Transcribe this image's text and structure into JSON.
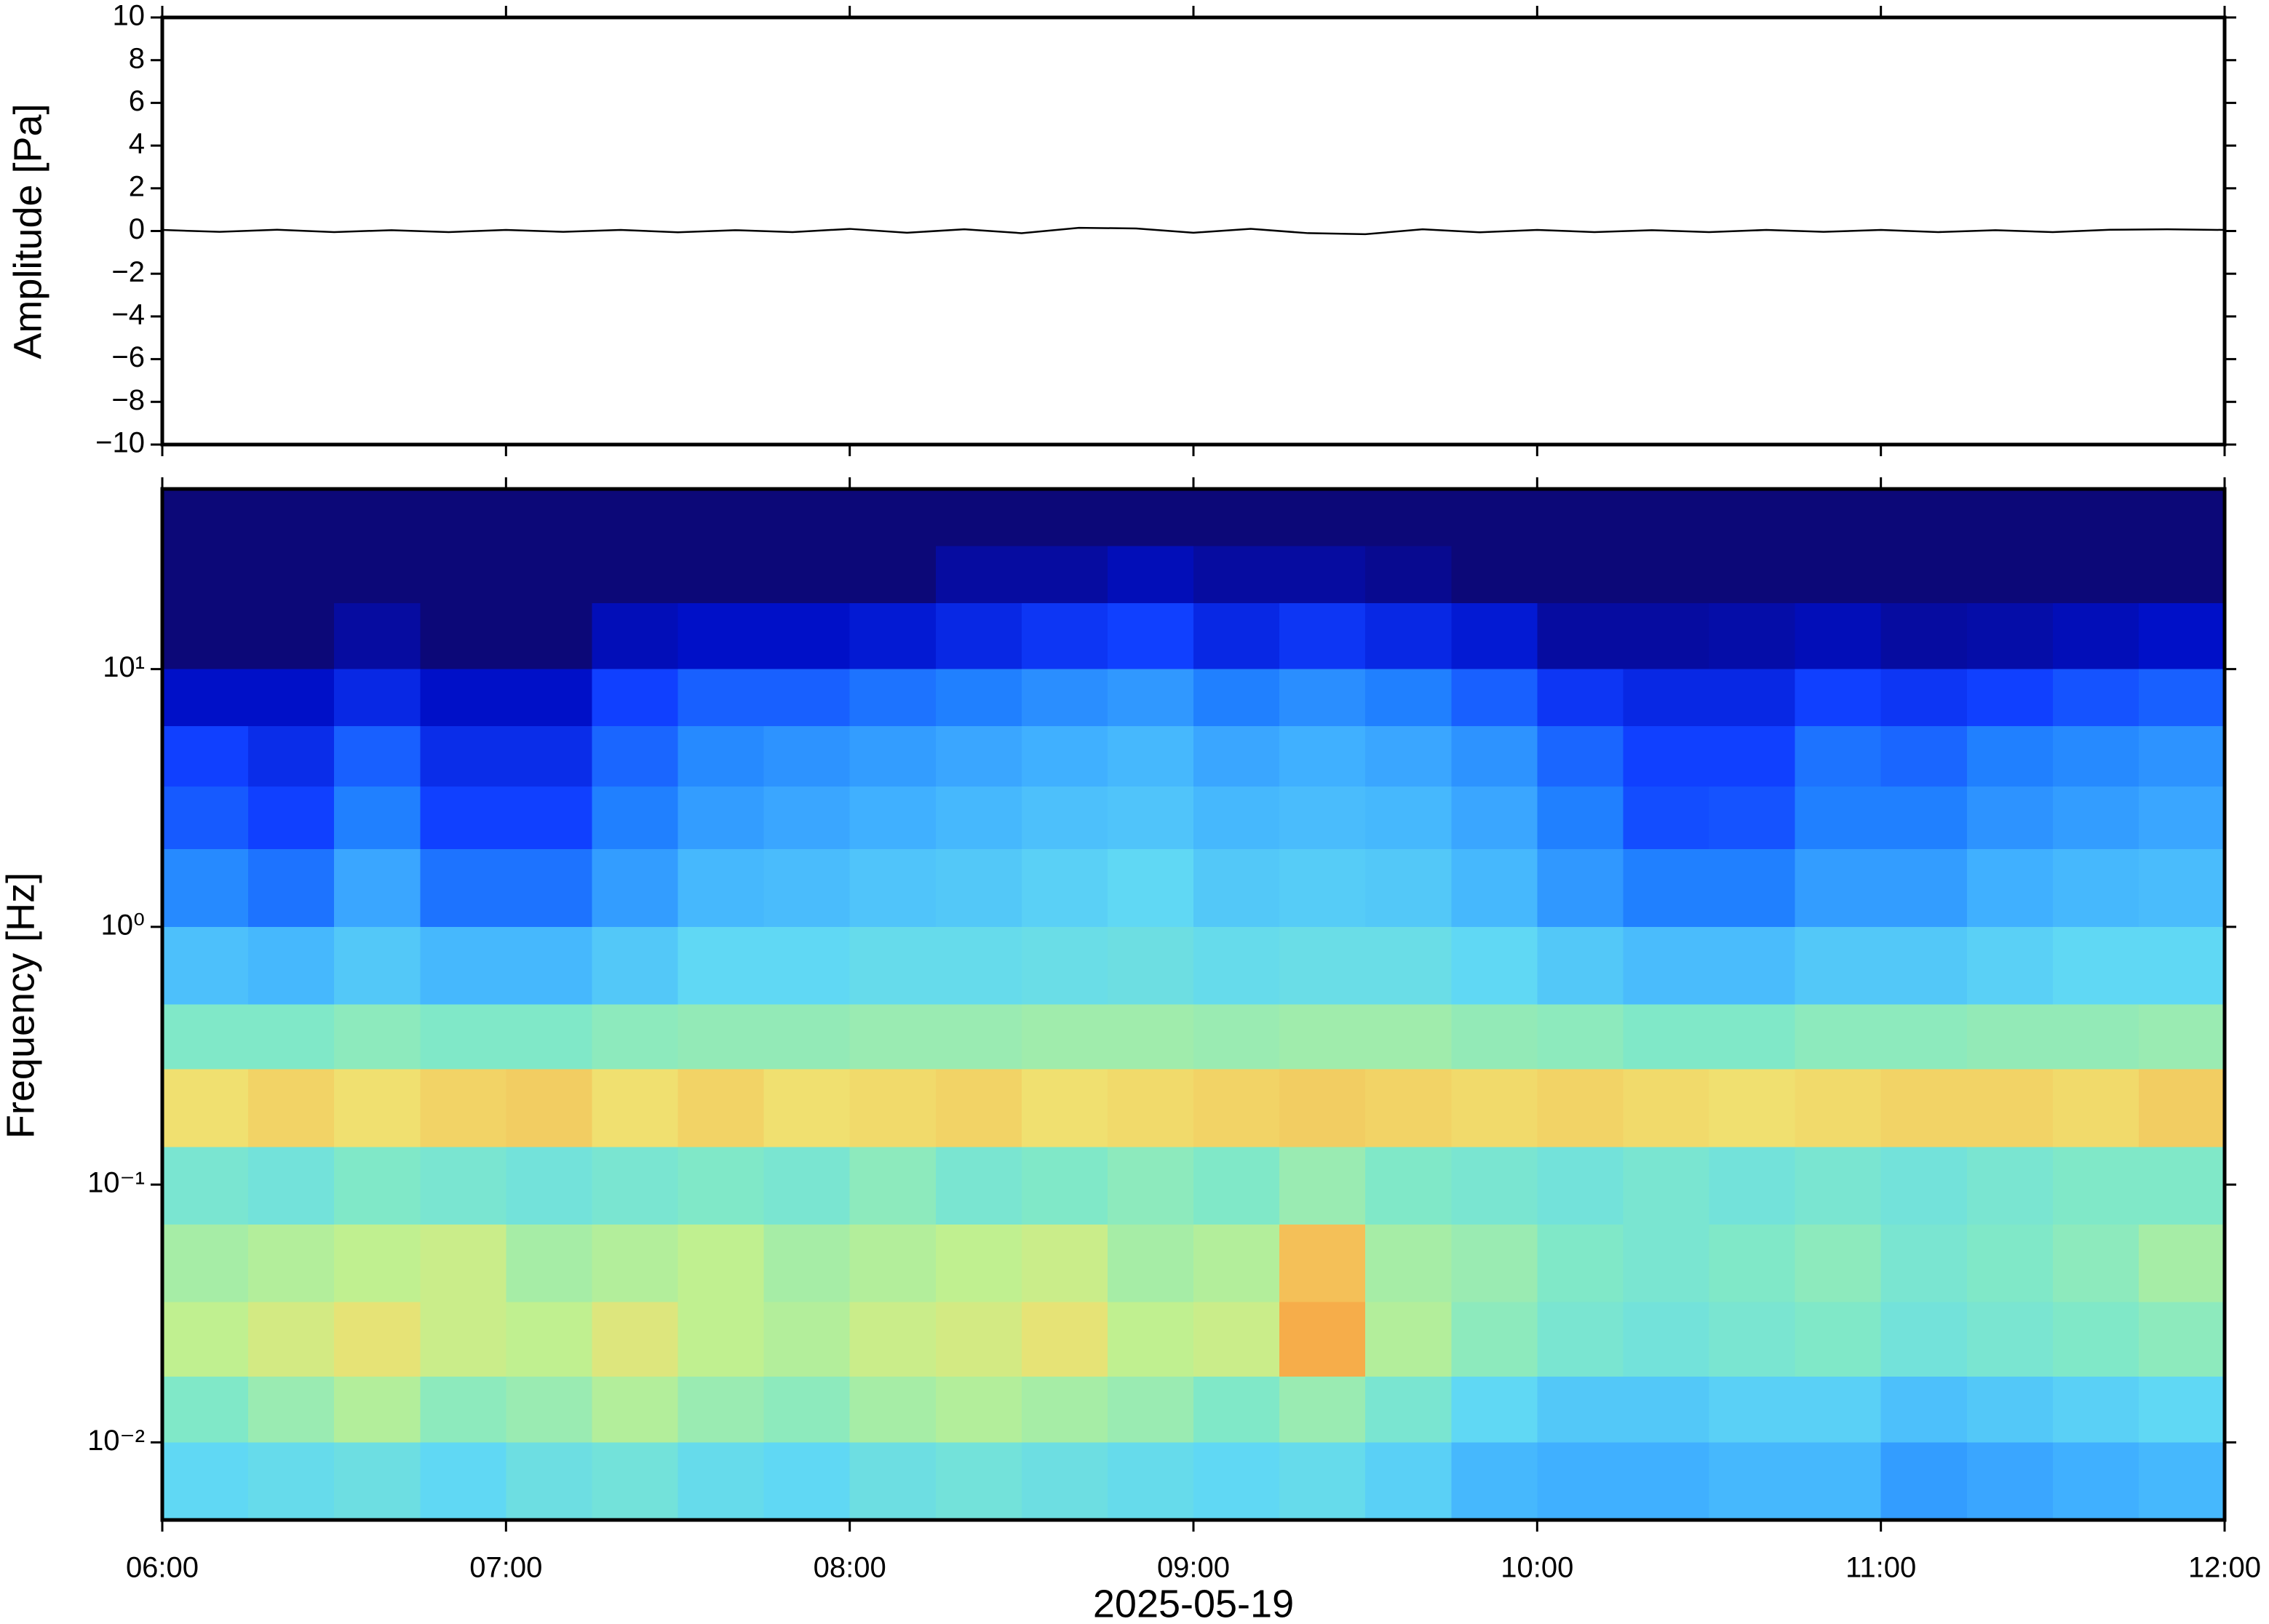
{
  "chart_data": [
    {
      "type": "line",
      "ylabel": "Amplitude [Pa]",
      "color": "#000000",
      "x": [
        "06:00",
        "06:10",
        "06:20",
        "06:30",
        "06:40",
        "06:50",
        "07:00",
        "07:10",
        "07:20",
        "07:30",
        "07:40",
        "07:50",
        "08:00",
        "08:10",
        "08:20",
        "08:30",
        "08:40",
        "08:50",
        "09:00",
        "09:10",
        "09:20",
        "09:30",
        "09:40",
        "09:50",
        "10:00",
        "10:10",
        "10:20",
        "10:30",
        "10:40",
        "10:50",
        "11:00",
        "11:10",
        "11:20",
        "11:30",
        "11:40",
        "11:50",
        "12:00"
      ],
      "values": [
        0.05,
        -0.04,
        0.06,
        -0.05,
        0.04,
        -0.05,
        0.05,
        -0.04,
        0.05,
        -0.06,
        0.04,
        -0.05,
        0.1,
        -0.08,
        0.08,
        -0.1,
        0.15,
        0.12,
        -0.08,
        0.1,
        -0.1,
        -0.15,
        0.08,
        -0.06,
        0.05,
        -0.05,
        0.04,
        -0.05,
        0.05,
        -0.04,
        0.05,
        -0.05,
        0.04,
        -0.05,
        0.06,
        0.08,
        0.05
      ],
      "ylim": [
        -10,
        10
      ],
      "yticks": [
        {
          "value": -10,
          "label": "−10"
        },
        {
          "value": -8,
          "label": "−8"
        },
        {
          "value": -6,
          "label": "−6"
        },
        {
          "value": -4,
          "label": "−4"
        },
        {
          "value": -2,
          "label": "−2"
        },
        0,
        2,
        4,
        6,
        8,
        10
      ]
    },
    {
      "type": "spectrogram",
      "ylabel": "Frequency [Hz]",
      "xlabel": "2025-05-19",
      "log_y": true,
      "colormap": [
        "#0c0878",
        "#0010c8",
        "#1040ff",
        "#2080ff",
        "#40b0ff",
        "#60d8f4",
        "#80e8c8",
        "#c0f090",
        "#f0e070",
        "#f8a040",
        "#e04020"
      ],
      "zlim": [
        0,
        10
      ],
      "xlim": [
        "06:00",
        "12:00"
      ],
      "xticks": [
        "06:00",
        "07:00",
        "08:00",
        "09:00",
        "10:00",
        "11:00",
        "12:00"
      ],
      "ylim": [
        0.005,
        50
      ],
      "yticks": [
        {
          "value": 0.01,
          "label": "10⁻²"
        },
        {
          "value": 0.1,
          "label": "10⁻¹"
        },
        {
          "value": 1,
          "label": "10⁰"
        },
        {
          "value": 10,
          "label": "10¹"
        }
      ],
      "x_edges": [
        "06:00",
        "06:15",
        "06:30",
        "06:45",
        "07:00",
        "07:15",
        "07:30",
        "07:45",
        "08:00",
        "08:15",
        "08:30",
        "08:45",
        "09:00",
        "09:15",
        "09:30",
        "09:45",
        "10:00",
        "10:15",
        "10:30",
        "10:45",
        "11:00",
        "11:15",
        "11:30",
        "11:45",
        "12:00"
      ],
      "y_edges": [
        50,
        30,
        18,
        10,
        6,
        3.5,
        2,
        1,
        0.5,
        0.28,
        0.14,
        0.07,
        0.035,
        0.018,
        0.01,
        0.005
      ],
      "values": [
        [
          0,
          0,
          0,
          0,
          0,
          0,
          0,
          0,
          0,
          0,
          0,
          0,
          0,
          0,
          0,
          0,
          0,
          0,
          0,
          0,
          0,
          0,
          0,
          0
        ],
        [
          0,
          0,
          0,
          0,
          0,
          0,
          0,
          0,
          0,
          0.5,
          0.5,
          0.8,
          0.5,
          0.5,
          0.3,
          0,
          0,
          0,
          0,
          0,
          0,
          0,
          0,
          0
        ],
        [
          0,
          0,
          0.5,
          0,
          0,
          0.8,
          1,
          1,
          1.2,
          1.5,
          1.8,
          2,
          1.5,
          1.8,
          1.5,
          1.2,
          0.5,
          0.5,
          0.6,
          0.8,
          0.5,
          0.6,
          0.8,
          1
        ],
        [
          1,
          1,
          1.5,
          1,
          1,
          2,
          2.5,
          2.5,
          2.8,
          3,
          3.3,
          3.5,
          3,
          3.3,
          3,
          2.5,
          1.8,
          1.5,
          1.5,
          2,
          1.8,
          2,
          2.3,
          2.5
        ],
        [
          2,
          1.6,
          2.5,
          1.6,
          1.6,
          2.6,
          3.2,
          3.4,
          3.6,
          3.8,
          4,
          4.2,
          3.8,
          4,
          3.8,
          3.4,
          2.6,
          2,
          2,
          2.8,
          2.6,
          3,
          3.2,
          3.4
        ],
        [
          2.4,
          2,
          3,
          2,
          2,
          3,
          3.6,
          3.8,
          4,
          4.2,
          4.4,
          4.5,
          4.2,
          4.3,
          4.2,
          3.8,
          3,
          2.2,
          2.3,
          3,
          3,
          3.4,
          3.6,
          3.8
        ],
        [
          3.2,
          2.8,
          3.8,
          2.8,
          2.8,
          3.6,
          4.2,
          4.3,
          4.5,
          4.6,
          4.8,
          5,
          4.6,
          4.7,
          4.6,
          4.2,
          3.5,
          3,
          3,
          3.6,
          3.6,
          4,
          4.2,
          4.3
        ],
        [
          4.4,
          4.2,
          4.6,
          4.2,
          4.2,
          4.6,
          5,
          5,
          5.2,
          5.2,
          5.3,
          5.4,
          5.2,
          5.3,
          5.3,
          5,
          4.6,
          4.3,
          4.3,
          4.6,
          4.6,
          4.8,
          5,
          5
        ],
        [
          6,
          6,
          6.2,
          6,
          6,
          6.2,
          6.3,
          6.3,
          6.4,
          6.4,
          6.5,
          6.5,
          6.4,
          6.5,
          6.5,
          6.3,
          6.2,
          6,
          6,
          6.2,
          6.2,
          6.3,
          6.3,
          6.4
        ],
        [
          8,
          8.2,
          8,
          8.2,
          8.3,
          8,
          8.2,
          8,
          8.1,
          8.2,
          8,
          8.1,
          8.2,
          8.3,
          8.2,
          8.1,
          8.2,
          8.1,
          8,
          8.1,
          8.2,
          8.2,
          8.1,
          8.3
        ],
        [
          5.8,
          5.6,
          6,
          5.8,
          5.6,
          5.8,
          6,
          5.8,
          6.2,
          5.8,
          6,
          6.2,
          6,
          6.4,
          6,
          5.8,
          5.6,
          5.8,
          5.6,
          5.8,
          5.6,
          5.8,
          6,
          6
        ],
        [
          6.6,
          6.8,
          7,
          7.2,
          6.6,
          6.8,
          7,
          6.6,
          6.8,
          7,
          7.2,
          6.6,
          6.8,
          8.5,
          6.6,
          6.4,
          6,
          5.8,
          6,
          6.2,
          5.8,
          6,
          6.2,
          6.6
        ],
        [
          7,
          7.4,
          7.8,
          7.2,
          7,
          7.6,
          7,
          6.8,
          7.2,
          7.4,
          7.8,
          7,
          7.2,
          8.8,
          6.8,
          6.2,
          5.8,
          5.6,
          5.8,
          6,
          5.6,
          5.8,
          6,
          6.2
        ],
        [
          6,
          6.4,
          6.8,
          6.2,
          6.4,
          6.8,
          6.4,
          6.2,
          6.6,
          6.8,
          6.6,
          6.4,
          6,
          6.4,
          5.8,
          5,
          4.6,
          4.6,
          4.8,
          4.8,
          4.4,
          4.6,
          4.8,
          5
        ],
        [
          5,
          5.2,
          5.4,
          5,
          5.4,
          5.6,
          5.2,
          5,
          5.4,
          5.6,
          5.4,
          5.2,
          5,
          5.2,
          4.8,
          4.2,
          4,
          4,
          4.2,
          4.2,
          3.6,
          3.8,
          4,
          4.2
        ]
      ]
    }
  ]
}
